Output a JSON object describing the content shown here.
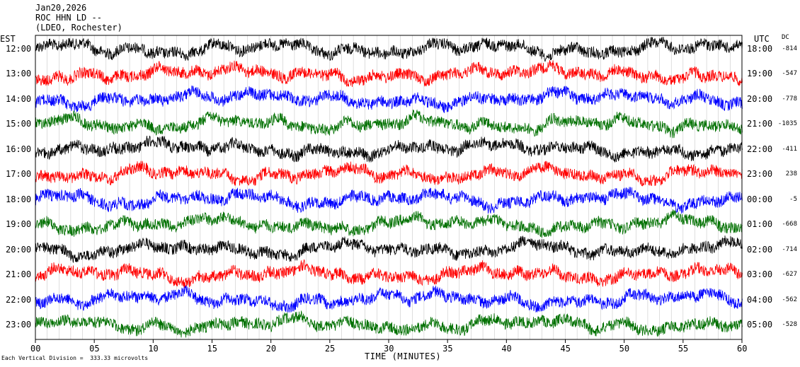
{
  "header": {
    "date": "Jan20,2026",
    "station": "ROC HHN LD --",
    "source": "(LDEO, Rochester)"
  },
  "left_axis_title": "EST",
  "right_axis_title": "UTC",
  "dc_title": "DC",
  "footnote": "Each Vertical Division =  333.33 microvolts",
  "colors": {
    "trace_cycle": [
      "#000000",
      "#ff0000",
      "#0000ff",
      "#007000"
    ],
    "axes": "#000000"
  },
  "chart_data": {
    "type": "line",
    "title": "",
    "xlabel": "TIME (MINUTES)",
    "x_ticks": [
      "00",
      "05",
      "10",
      "15",
      "20",
      "25",
      "30",
      "35",
      "40",
      "45",
      "50",
      "55",
      "60"
    ],
    "xlim": [
      0,
      60
    ],
    "grid": "vertical lines every minute",
    "rows": [
      {
        "est": "12:00",
        "utc": "18:00",
        "dc": "-814"
      },
      {
        "est": "13:00",
        "utc": "19:00",
        "dc": "-547"
      },
      {
        "est": "14:00",
        "utc": "20:00",
        "dc": "-778"
      },
      {
        "est": "15:00",
        "utc": "21:00",
        "dc": "-1035"
      },
      {
        "est": "16:00",
        "utc": "22:00",
        "dc": "-411"
      },
      {
        "est": "17:00",
        "utc": "23:00",
        "dc": "238"
      },
      {
        "est": "18:00",
        "utc": "00:00",
        "dc": "-5"
      },
      {
        "est": "19:00",
        "utc": "01:00",
        "dc": "-668"
      },
      {
        "est": "20:00",
        "utc": "02:00",
        "dc": "-714"
      },
      {
        "est": "21:00",
        "utc": "03:00",
        "dc": "-627"
      },
      {
        "est": "22:00",
        "utc": "04:00",
        "dc": "-562"
      },
      {
        "est": "23:00",
        "utc": "05:00",
        "dc": "-528"
      }
    ]
  }
}
